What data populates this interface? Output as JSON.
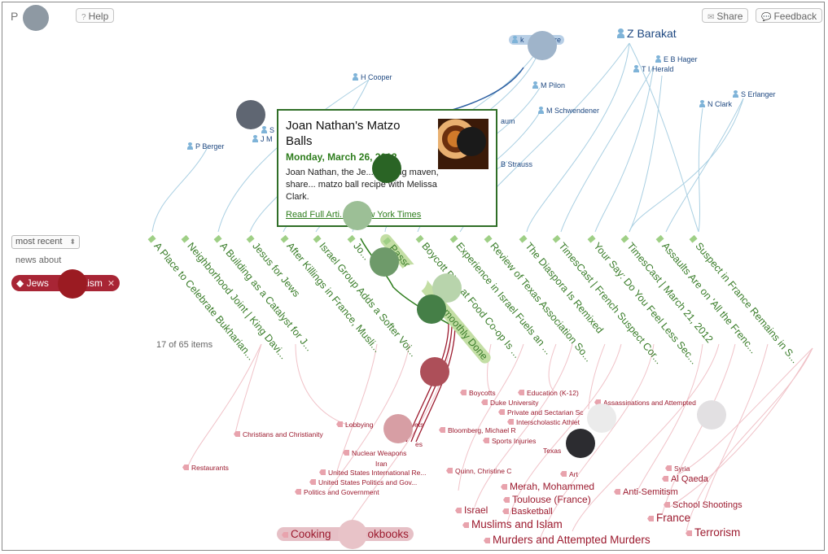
{
  "app": {
    "title": "P",
    "help": "Help",
    "share": "Share",
    "feedback": "Feedback"
  },
  "sidebar": {
    "sort": "most recent",
    "news_about": "news about",
    "tag": "Jews",
    "tag_tail": "daism",
    "count": "17 of 65 items"
  },
  "people": [
    "H Cooper",
    "M Pilon",
    "M Schwendener",
    "P Berger",
    "Z Barakat",
    "E B Hager",
    "T I Herald",
    "S Erlanger",
    "N Clark",
    "B Strauss",
    "yare",
    "k",
    "S",
    "J M",
    "aum"
  ],
  "articles": [
    "A Place to Celebrate Bukharian...",
    "Neighborhood Joint | King Davi...",
    "A Building as a Catalyst for J...",
    "Jesus for Jews",
    "After Killings in France, Musli...",
    "Israel Group Adds a Softer Voi...",
    "Jo...",
    "Passo...",
    "Boycott Plan at Food Co-op Is ...",
    "Experience in Israel Fuels an ...",
    "Review of Texas Association So...",
    "The Diaspora Is Remixed",
    "TimesCast | French Suspect Cor...",
    "Your Say: Do You Feel Less Sec...",
    "TimesCast | March 21, 2012",
    "Assaults Are on 'All the Frenc...",
    "Suspect in France Remains in S..."
  ],
  "smoothly": "moothly Done",
  "subjects": [
    "Christians and Christianity",
    "Restaurants",
    "Lobbying",
    "ets",
    "Nuclear Weapons",
    "Iran",
    "United States International Re...",
    "United States Politics and Gov...",
    "Politics and Government",
    "Boycotts",
    "Education (K-12)",
    "Duke University",
    "Private and Sectarian Sc",
    "Interscholastic Athlet",
    "Bloomberg, Michael R",
    "Sports Injuries",
    "Texas",
    "Quinn, Christine C",
    "Art",
    "Assassinations and Attempted",
    "Syria",
    "Al Qaeda",
    "Anti-Semitism",
    "School Shootings",
    "Merah, Mohammed",
    "Toulouse (France)",
    "Basketball",
    "Israel",
    "Muslims and Islam",
    "France",
    "Terrorism",
    "Murders and Attempted Murders",
    "Cooking",
    "bookbooks",
    "es"
  ],
  "popup": {
    "title": "Joan Nathan's Matzo Balls",
    "date": "Monday, March 26, 2012",
    "desc": "Joan Nathan, the Je... cooking maven, share... matzo ball recipe with Melissa Clark.",
    "link": "Read Full Arti... e New York Times"
  },
  "colors": {
    "person": "#1d4780",
    "article": "#3a7d2a",
    "subject": "#9c1a2e",
    "tag": "#a82535",
    "link_blue": "#a9cfe2",
    "link_pink": "#f0c2c8"
  },
  "icons": [
    "help-icon",
    "mail-icon",
    "speech-bubble-icon",
    "person-icon",
    "article-icon",
    "tag-icon",
    "close-icon"
  ]
}
